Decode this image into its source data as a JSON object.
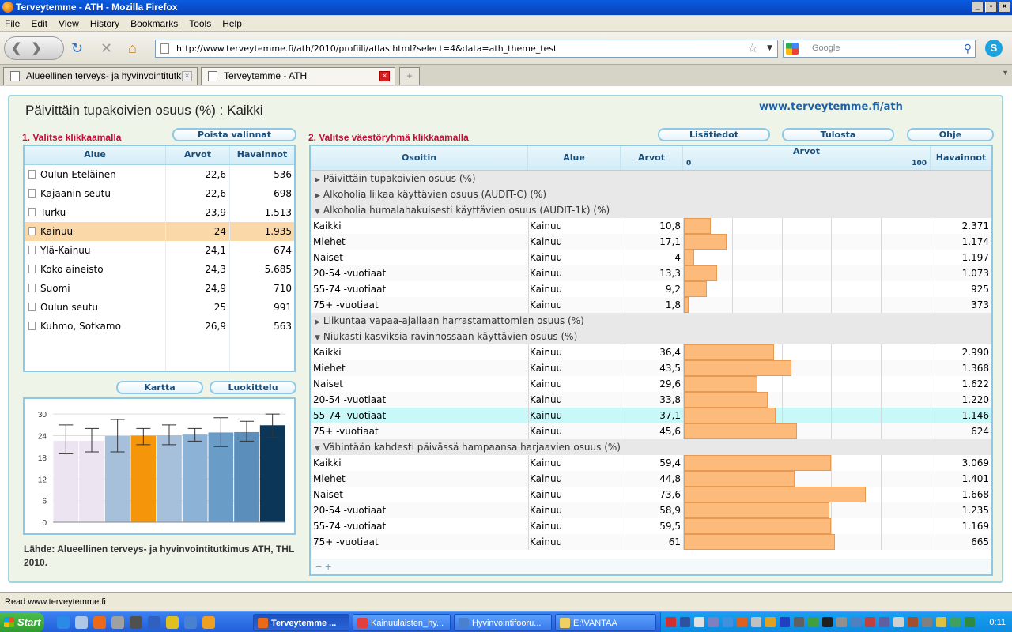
{
  "window": {
    "title": "Terveytemme - ATH - Mozilla Firefox"
  },
  "menu": [
    "File",
    "Edit",
    "View",
    "History",
    "Bookmarks",
    "Tools",
    "Help"
  ],
  "nav": {
    "url": "http://www.terveytemme.fi/ath/2010/profiili/atlas.html?select=4&data=ath_theme_test",
    "search_placeholder": "Google"
  },
  "tabs": [
    {
      "label": "Alueellinen terveys- ja hyvinvointitutki...",
      "active": false
    },
    {
      "label": "Terveytemme - ATH",
      "active": true
    }
  ],
  "page": {
    "title": "Päivittäin tupakoivien osuus (%) : Kaikki",
    "site": "www.terveytemme.fi/ath",
    "left": {
      "heading": "1. Valitse klikkaamalla",
      "clear_button": "Poista valinnat",
      "columns": [
        "Alue",
        "Arvot",
        "Havainnot"
      ],
      "rows": [
        {
          "alue": "Oulun Eteläinen",
          "arvot": "22,6",
          "havainnot": "536",
          "selected": false
        },
        {
          "alue": "Kajaanin seutu",
          "arvot": "22,6",
          "havainnot": "698",
          "selected": false
        },
        {
          "alue": "Turku",
          "arvot": "23,9",
          "havainnot": "1.513",
          "selected": false
        },
        {
          "alue": "Kainuu",
          "arvot": "24",
          "havainnot": "1.935",
          "selected": true
        },
        {
          "alue": "Ylä-Kainuu",
          "arvot": "24,1",
          "havainnot": "674",
          "selected": false
        },
        {
          "alue": "Koko aineisto",
          "arvot": "24,3",
          "havainnot": "5.685",
          "selected": false
        },
        {
          "alue": "Suomi",
          "arvot": "24,9",
          "havainnot": "710",
          "selected": false
        },
        {
          "alue": "Oulun seutu",
          "arvot": "25",
          "havainnot": "991",
          "selected": false
        },
        {
          "alue": "Kuhmo, Sotkamo",
          "arvot": "26,9",
          "havainnot": "563",
          "selected": false
        }
      ],
      "map_button": "Kartta",
      "class_button": "Luokittelu",
      "source": "Lähde: Alueellinen terveys- ja hyvinvointitutkimus ATH, THL 2010."
    },
    "right": {
      "heading": "2. Valitse väestöryhmä klikkaamalla",
      "buttons": [
        "Lisätiedot",
        "Tulosta",
        "Ohje"
      ],
      "columns": {
        "osoitin": "Osoitin",
        "alue": "Alue",
        "arvot": "Arvot",
        "bar": "Arvot",
        "bar_min": "0",
        "bar_max": "100",
        "havainnot": "Havainnot"
      },
      "groups": [
        {
          "title": "Päivittäin tupakoivien osuus (%)",
          "expanded": false,
          "rows": []
        },
        {
          "title": "Alkoholia liikaa käyttävien osuus (AUDIT-C) (%)",
          "expanded": false,
          "rows": []
        },
        {
          "title": "Alkoholia humalahakuisesti käyttävien osuus (AUDIT-1k) (%)",
          "expanded": true,
          "rows": [
            {
              "o": "Kaikki",
              "a": "Kainuu",
              "v": "10,8",
              "n": 10.8,
              "h": "2.371"
            },
            {
              "o": "Miehet",
              "a": "Kainuu",
              "v": "17,1",
              "n": 17.1,
              "h": "1.174"
            },
            {
              "o": "Naiset",
              "a": "Kainuu",
              "v": "4",
              "n": 4,
              "h": "1.197"
            },
            {
              "o": "20-54 -vuotiaat",
              "a": "Kainuu",
              "v": "13,3",
              "n": 13.3,
              "h": "1.073"
            },
            {
              "o": "55-74 -vuotiaat",
              "a": "Kainuu",
              "v": "9,2",
              "n": 9.2,
              "h": "925"
            },
            {
              "o": "75+ -vuotiaat",
              "a": "Kainuu",
              "v": "1,8",
              "n": 1.8,
              "h": "373"
            }
          ]
        },
        {
          "title": "Liikuntaa vapaa-ajallaan harrastamattomien osuus (%)",
          "expanded": false,
          "rows": []
        },
        {
          "title": "Niukasti kasviksia ravinnossaan käyttävien osuus (%)",
          "expanded": true,
          "rows": [
            {
              "o": "Kaikki",
              "a": "Kainuu",
              "v": "36,4",
              "n": 36.4,
              "h": "2.990"
            },
            {
              "o": "Miehet",
              "a": "Kainuu",
              "v": "43,5",
              "n": 43.5,
              "h": "1.368"
            },
            {
              "o": "Naiset",
              "a": "Kainuu",
              "v": "29,6",
              "n": 29.6,
              "h": "1.622"
            },
            {
              "o": "20-54 -vuotiaat",
              "a": "Kainuu",
              "v": "33,8",
              "n": 33.8,
              "h": "1.220"
            },
            {
              "o": "55-74 -vuotiaat",
              "a": "Kainuu",
              "v": "37,1",
              "n": 37.1,
              "h": "1.146",
              "highlight": true
            },
            {
              "o": "75+ -vuotiaat",
              "a": "Kainuu",
              "v": "45,6",
              "n": 45.6,
              "h": "624"
            }
          ]
        },
        {
          "title": "Vähintään kahdesti päivässä hampaansa harjaavien osuus (%)",
          "expanded": true,
          "rows": [
            {
              "o": "Kaikki",
              "a": "Kainuu",
              "v": "59,4",
              "n": 59.4,
              "h": "3.069"
            },
            {
              "o": "Miehet",
              "a": "Kainuu",
              "v": "44,8",
              "n": 44.8,
              "h": "1.401"
            },
            {
              "o": "Naiset",
              "a": "Kainuu",
              "v": "73,6",
              "n": 73.6,
              "h": "1.668"
            },
            {
              "o": "20-54 -vuotiaat",
              "a": "Kainuu",
              "v": "58,9",
              "n": 58.9,
              "h": "1.235"
            },
            {
              "o": "55-74 -vuotiaat",
              "a": "Kainuu",
              "v": "59,5",
              "n": 59.5,
              "h": "1.169"
            },
            {
              "o": "75+ -vuotiaat",
              "a": "Kainuu",
              "v": "61",
              "n": 61,
              "h": "665"
            }
          ]
        }
      ],
      "footer_controls": "− +"
    }
  },
  "chart_data": {
    "type": "bar",
    "categories": [
      "Oulun Eteläinen",
      "Kajaanin seutu",
      "Turku",
      "Kainuu",
      "Ylä-Kainuu",
      "Koko aineisto",
      "Suomi",
      "Oulun seutu",
      "Kuhmo, Sotkamo"
    ],
    "values": [
      22.6,
      22.6,
      23.9,
      24,
      24.1,
      24.3,
      24.9,
      25,
      26.9
    ],
    "error_low": [
      19,
      19.5,
      19.5,
      21.5,
      21.5,
      22.5,
      21,
      22.5,
      23.5
    ],
    "error_high": [
      27,
      26,
      28.5,
      26,
      27,
      26,
      29,
      28,
      30
    ],
    "colors": [
      "#ece4f0",
      "#ece4f0",
      "#a6c0dc",
      "#f5960a",
      "#a6c0dc",
      "#8cb2d6",
      "#6a9cc8",
      "#5c8ebc",
      "#0c3658"
    ],
    "yticks": [
      "0",
      "6",
      "12",
      "18",
      "24",
      "30"
    ],
    "ylim": [
      0,
      32
    ],
    "grid": true
  },
  "statusbar": {
    "text": "Read www.terveytemme.fi"
  },
  "taskbar": {
    "start": "Start",
    "tasks": [
      {
        "label": "Terveytemme ...",
        "active": true
      },
      {
        "label": "Kainuulaisten_hy...",
        "active": false
      },
      {
        "label": "Hyvinvointifooru...",
        "active": false
      },
      {
        "label": "E:\\VANTAA",
        "active": false
      }
    ],
    "clock": "0:11"
  }
}
